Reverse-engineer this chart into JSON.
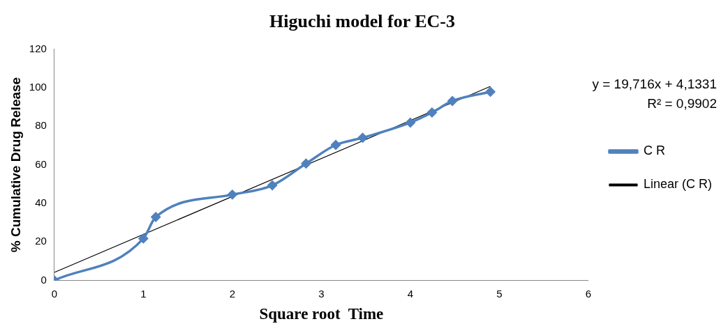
{
  "chart_data": {
    "type": "line",
    "title": "Higuchi model for EC-3",
    "xlabel": "Square root  Time",
    "ylabel": "% Cumulative Drug Release",
    "xlim": [
      0,
      6
    ],
    "xticks": [
      0,
      1,
      2,
      3,
      4,
      5,
      6
    ],
    "ylim": [
      0,
      120
    ],
    "yticks": [
      0,
      20,
      40,
      60,
      80,
      100,
      120
    ],
    "grid": false,
    "legend": "right",
    "annotations": [
      "y = 19,716x + 4,1331",
      "R² = 0,9902"
    ],
    "series": [
      {
        "name": "C R",
        "color": "#4f81bd",
        "marker": "diamond",
        "x": [
          0,
          1,
          1.14,
          2,
          2.449,
          2.828,
          3.162,
          3.464,
          4,
          4.243,
          4.472,
          4.899
        ],
        "values": [
          0,
          21.7,
          32.9,
          44.5,
          49.3,
          60.6,
          70.3,
          74,
          81.9,
          87.1,
          93.1,
          97.9
        ]
      },
      {
        "name": "Linear (C R)",
        "color": "#000000",
        "marker": "none",
        "x": [
          0,
          4.899
        ],
        "values": [
          4.1,
          100.7
        ]
      }
    ]
  }
}
